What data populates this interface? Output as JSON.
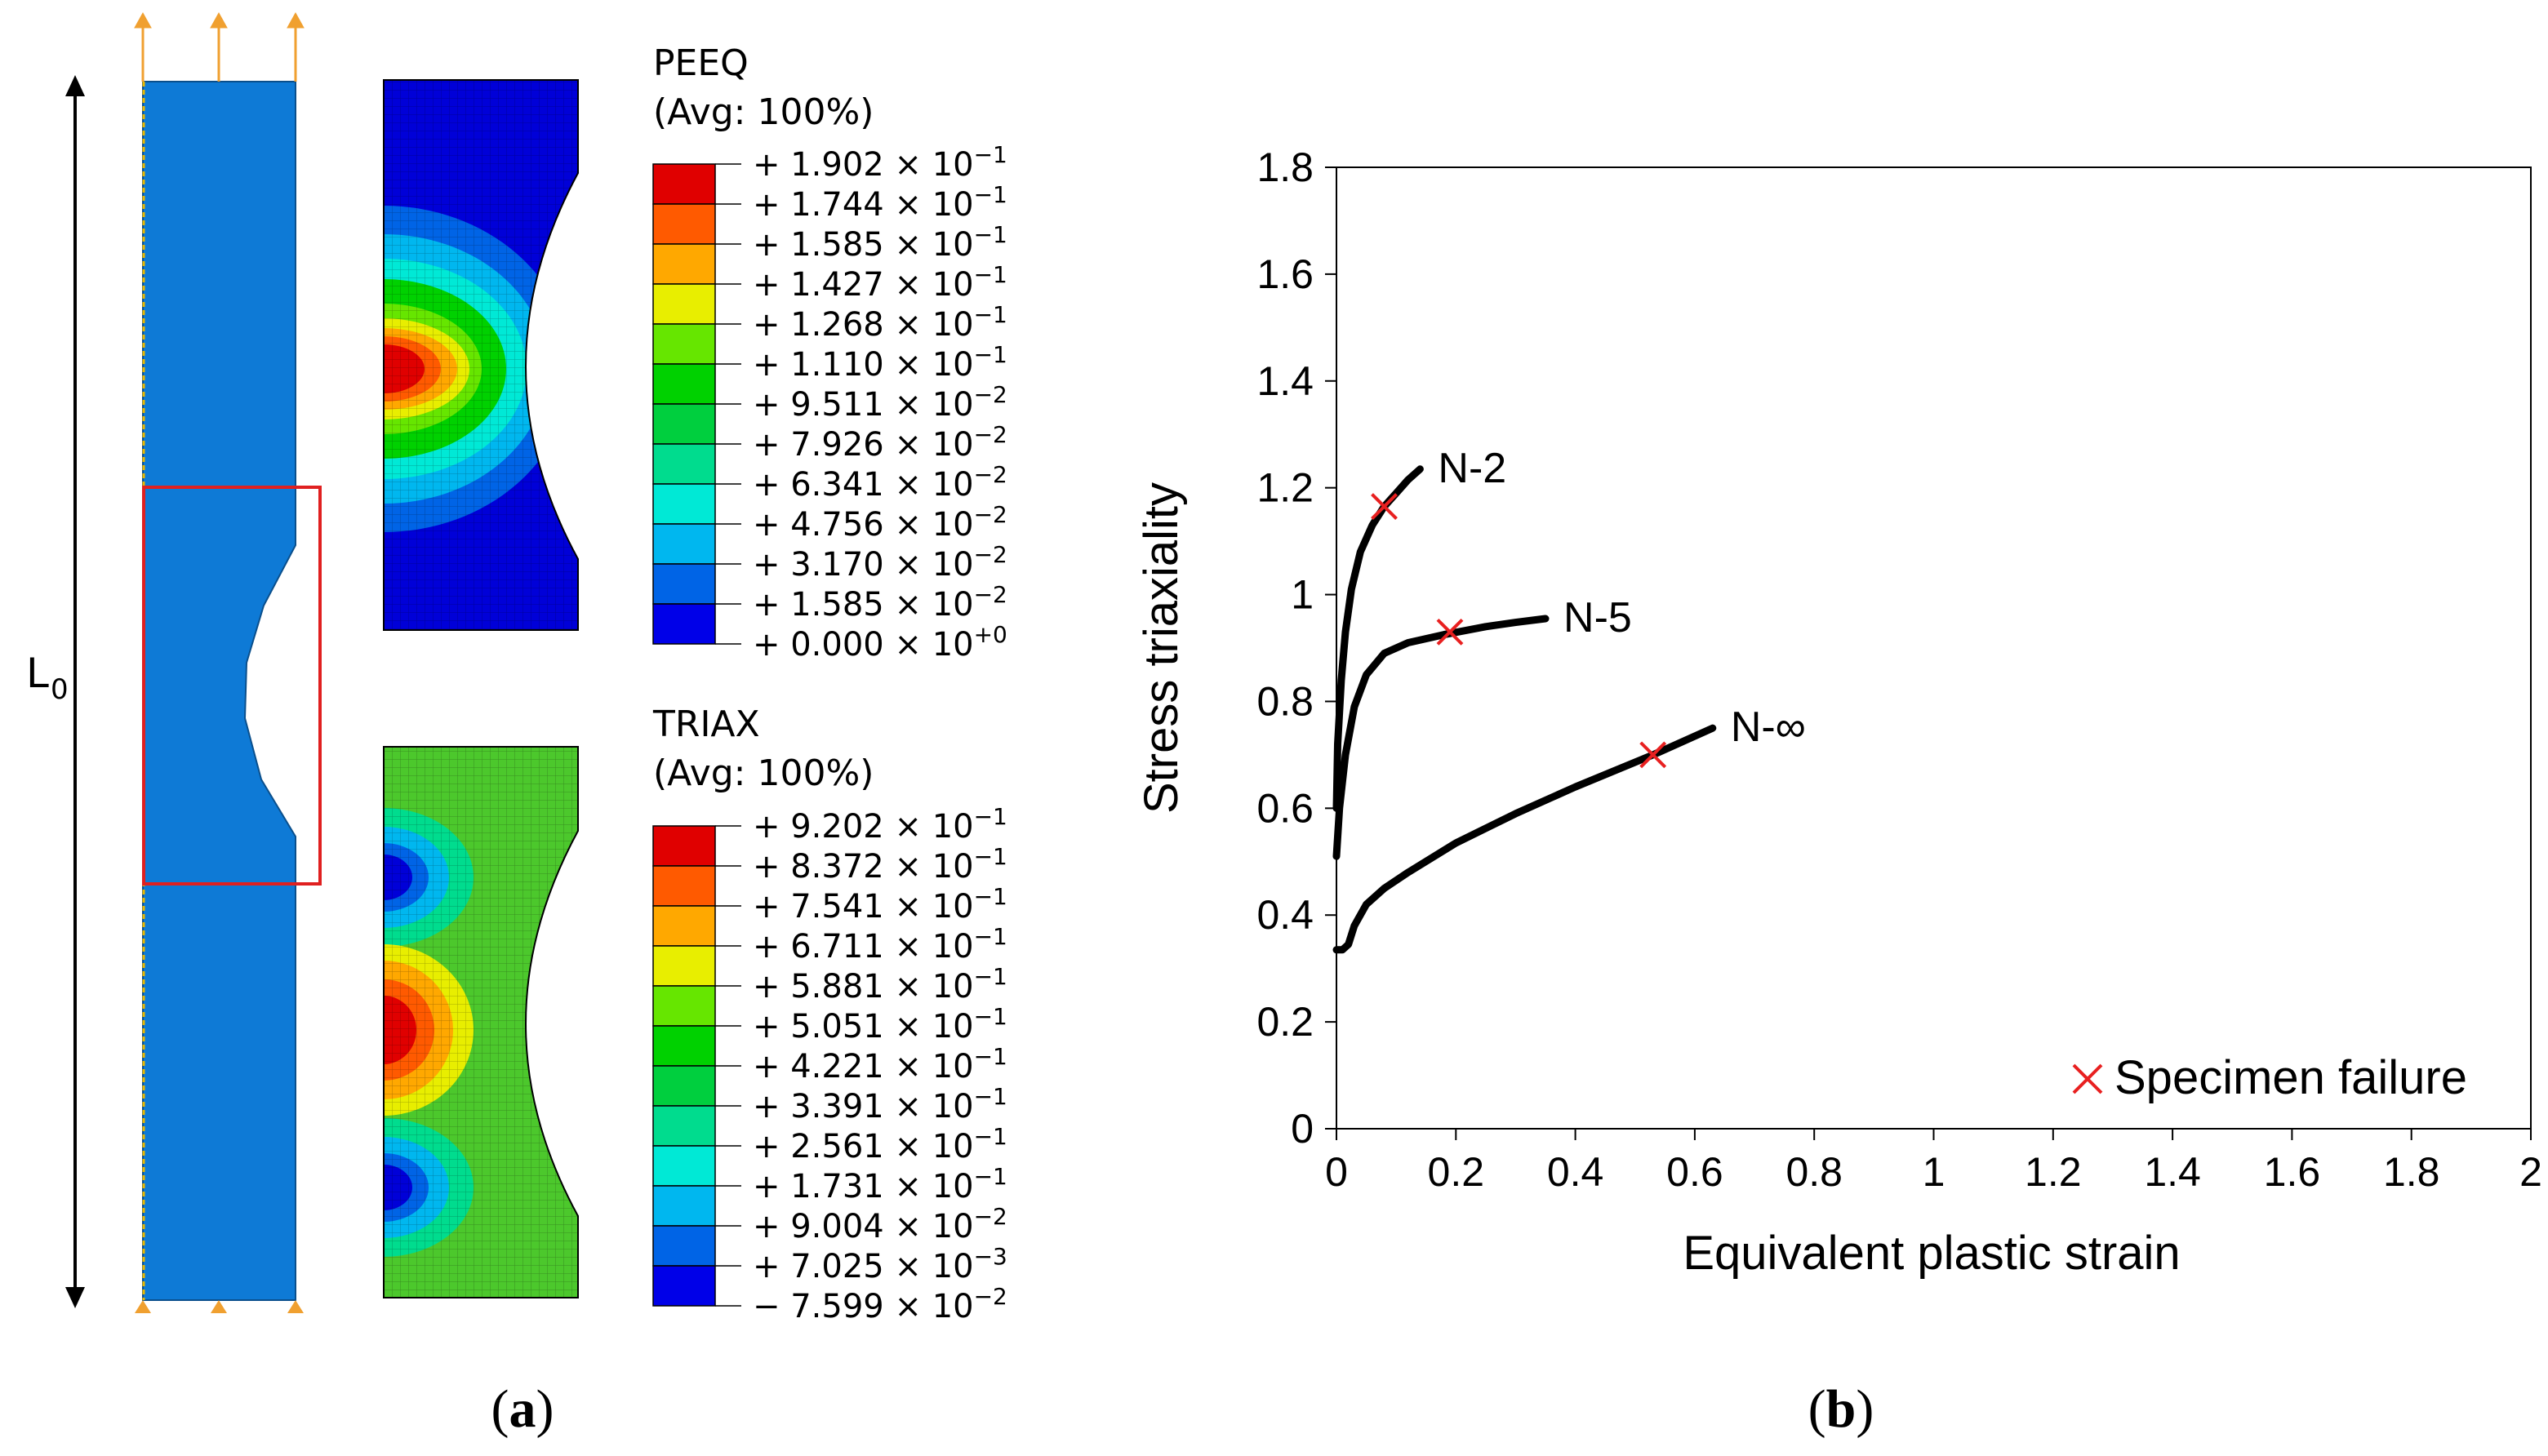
{
  "panel_a": {
    "label": "a",
    "length_label": "L",
    "length_subscript": "0",
    "legend_peeq": {
      "title": "PEEQ",
      "subtitle": "(Avg: 100%)",
      "colors": [
        "#e00000",
        "#ff5a00",
        "#ffa800",
        "#e8ee00",
        "#66e600",
        "#00d100",
        "#00cf3e",
        "#00dc8e",
        "#00e9d6",
        "#00b7ef",
        "#0064e6",
        "#0000e8"
      ],
      "values": [
        {
          "sign": "+",
          "mant": "1.902",
          "exp": "−1"
        },
        {
          "sign": "+",
          "mant": "1.744",
          "exp": "−1"
        },
        {
          "sign": "+",
          "mant": "1.585",
          "exp": "−1"
        },
        {
          "sign": "+",
          "mant": "1.427",
          "exp": "−1"
        },
        {
          "sign": "+",
          "mant": "1.268",
          "exp": "−1"
        },
        {
          "sign": "+",
          "mant": "1.110",
          "exp": "−1"
        },
        {
          "sign": "+",
          "mant": "9.511",
          "exp": "−2"
        },
        {
          "sign": "+",
          "mant": "7.926",
          "exp": "−2"
        },
        {
          "sign": "+",
          "mant": "6.341",
          "exp": "−2"
        },
        {
          "sign": "+",
          "mant": "4.756",
          "exp": "−2"
        },
        {
          "sign": "+",
          "mant": "3.170",
          "exp": "−2"
        },
        {
          "sign": "+",
          "mant": "1.585",
          "exp": "−2"
        },
        {
          "sign": "+",
          "mant": "0.000",
          "exp": "+0"
        }
      ]
    },
    "legend_triax": {
      "title": "TRIAX",
      "subtitle": "(Avg: 100%)",
      "colors": [
        "#e00000",
        "#ff5a00",
        "#ffa800",
        "#e8ee00",
        "#66e600",
        "#00d100",
        "#00cf3e",
        "#00dc8e",
        "#00e9d6",
        "#00b7ef",
        "#0064e6",
        "#0000e8"
      ],
      "values": [
        {
          "sign": "+",
          "mant": "9.202",
          "exp": "−1"
        },
        {
          "sign": "+",
          "mant": "8.372",
          "exp": "−1"
        },
        {
          "sign": "+",
          "mant": "7.541",
          "exp": "−1"
        },
        {
          "sign": "+",
          "mant": "6.711",
          "exp": "−1"
        },
        {
          "sign": "+",
          "mant": "5.881",
          "exp": "−1"
        },
        {
          "sign": "+",
          "mant": "5.051",
          "exp": "−1"
        },
        {
          "sign": "+",
          "mant": "4.221",
          "exp": "−1"
        },
        {
          "sign": "+",
          "mant": "3.391",
          "exp": "−1"
        },
        {
          "sign": "+",
          "mant": "2.561",
          "exp": "−1"
        },
        {
          "sign": "+",
          "mant": "1.731",
          "exp": "−1"
        },
        {
          "sign": "+",
          "mant": "9.004",
          "exp": "−2"
        },
        {
          "sign": "+",
          "mant": "7.025",
          "exp": "−3"
        },
        {
          "sign": "−",
          "mant": "7.599",
          "exp": "−2"
        }
      ]
    }
  },
  "panel_b": {
    "label": "b"
  },
  "chart_data": {
    "type": "line",
    "title": "",
    "xlabel": "Equivalent plastic strain",
    "ylabel": "Stress triaxiality",
    "xlim": [
      0,
      2
    ],
    "ylim": [
      0,
      1.8
    ],
    "xticks": [
      0,
      0.2,
      0.4,
      0.6,
      0.8,
      1,
      1.2,
      1.4,
      1.6,
      1.8,
      2
    ],
    "xtick_labels": [
      "0",
      "0.2",
      "0.4",
      "0.6",
      "0.8",
      "1",
      "1.2",
      "1.4",
      "1.6",
      "1.8",
      "2"
    ],
    "yticks": [
      0,
      0.2,
      0.4,
      0.6,
      0.8,
      1,
      1.2,
      1.4,
      1.6,
      1.8
    ],
    "ytick_labels": [
      "0",
      "0.2",
      "0.4",
      "0.6",
      "0.8",
      "1",
      "1.2",
      "1.4",
      "1.6",
      "1.8"
    ],
    "grid": false,
    "series": [
      {
        "name": "N-2",
        "x": [
          0,
          0.002,
          0.008,
          0.015,
          0.025,
          0.04,
          0.06,
          0.08,
          0.1,
          0.12,
          0.14
        ],
        "y": [
          0.6,
          0.72,
          0.84,
          0.93,
          1.01,
          1.08,
          1.13,
          1.165,
          1.19,
          1.215,
          1.235
        ]
      },
      {
        "name": "N-5",
        "x": [
          0,
          0.005,
          0.015,
          0.03,
          0.05,
          0.08,
          0.12,
          0.18,
          0.25,
          0.3,
          0.35
        ],
        "y": [
          0.51,
          0.6,
          0.7,
          0.79,
          0.85,
          0.89,
          0.91,
          0.925,
          0.94,
          0.948,
          0.955
        ]
      },
      {
        "name": "N-∞",
        "x": [
          0,
          0.01,
          0.02,
          0.03,
          0.05,
          0.08,
          0.12,
          0.2,
          0.3,
          0.4,
          0.53,
          0.63
        ],
        "y": [
          0.335,
          0.335,
          0.345,
          0.38,
          0.42,
          0.45,
          0.48,
          0.535,
          0.59,
          0.64,
          0.7,
          0.75
        ]
      }
    ],
    "failure_points": [
      {
        "series": "N-2",
        "x": 0.08,
        "y": 1.165
      },
      {
        "series": "N-5",
        "x": 0.19,
        "y": 0.93
      },
      {
        "series": "N-∞",
        "x": 0.53,
        "y": 0.7
      }
    ],
    "legend": {
      "entries": [
        "Specimen failure"
      ],
      "placement": "bottom-right"
    }
  }
}
